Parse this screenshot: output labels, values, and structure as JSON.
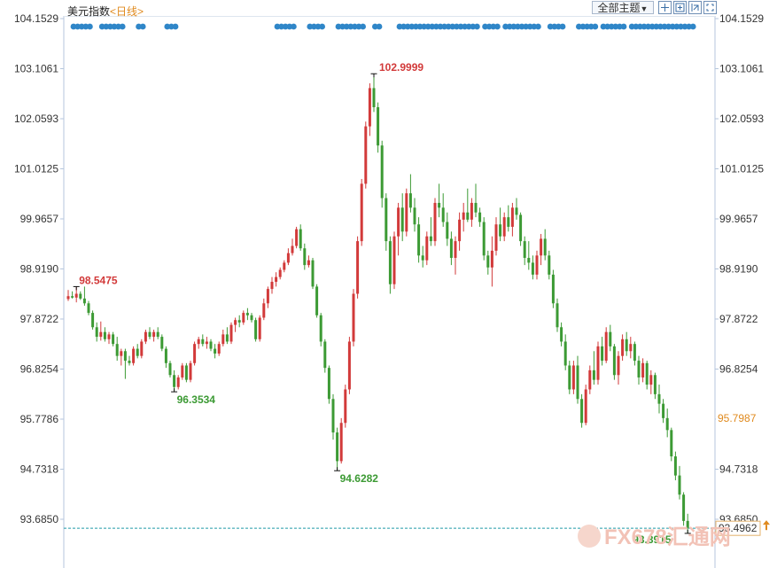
{
  "header": {
    "title": "美元指数",
    "period": "<日线>",
    "theme_button": "全部主题"
  },
  "watermark": "FX678汇通网",
  "colors": {
    "up": "#d23a3a",
    "down": "#3c9a34",
    "dot": "#2f86c8",
    "price_tag": "#e08a1e",
    "current_line": "#1e9aa7"
  },
  "chart_data": {
    "type": "candlestick",
    "title": "美元指数",
    "ylim": [
      93.3915,
      104.1529
    ],
    "y_ticks": [
      "104.1529",
      "103.1061",
      "102.0593",
      "101.0125",
      "99.9657",
      "98.9190",
      "97.8722",
      "96.8254",
      "95.7786",
      "94.7318",
      "93.6850"
    ],
    "annotations": {
      "high": "102.9999",
      "early_high": "98.5475",
      "low1": "96.3534",
      "low2": "94.6282",
      "last_low": "93.3915"
    },
    "price_tags": {
      "marker": "95.7987",
      "current": "93.4962"
    },
    "candles": [
      {
        "o": 98.29,
        "h": 98.48,
        "l": 98.25,
        "c": 98.35
      },
      {
        "o": 98.35,
        "h": 98.45,
        "l": 98.3,
        "c": 98.32
      },
      {
        "o": 98.32,
        "h": 98.55,
        "l": 98.22,
        "c": 98.4
      },
      {
        "o": 98.4,
        "h": 98.45,
        "l": 98.27,
        "c": 98.3
      },
      {
        "o": 98.3,
        "h": 98.55,
        "l": 98.15,
        "c": 98.2
      },
      {
        "o": 98.2,
        "h": 98.25,
        "l": 97.95,
        "c": 98.0
      },
      {
        "o": 98.0,
        "h": 98.05,
        "l": 97.65,
        "c": 97.7
      },
      {
        "o": 97.7,
        "h": 97.8,
        "l": 97.4,
        "c": 97.5
      },
      {
        "o": 97.5,
        "h": 97.82,
        "l": 97.42,
        "c": 97.6
      },
      {
        "o": 97.6,
        "h": 97.7,
        "l": 97.4,
        "c": 97.45
      },
      {
        "o": 97.45,
        "h": 97.6,
        "l": 97.35,
        "c": 97.55
      },
      {
        "o": 97.55,
        "h": 97.6,
        "l": 97.3,
        "c": 97.35
      },
      {
        "o": 97.35,
        "h": 97.5,
        "l": 97.0,
        "c": 97.1
      },
      {
        "o": 97.1,
        "h": 97.25,
        "l": 96.9,
        "c": 97.2
      },
      {
        "o": 97.2,
        "h": 97.25,
        "l": 96.62,
        "c": 97.0
      },
      {
        "o": 97.0,
        "h": 97.1,
        "l": 96.9,
        "c": 96.95
      },
      {
        "o": 96.95,
        "h": 97.3,
        "l": 96.9,
        "c": 97.25
      },
      {
        "o": 97.25,
        "h": 97.35,
        "l": 97.05,
        "c": 97.1
      },
      {
        "o": 97.1,
        "h": 97.45,
        "l": 97.05,
        "c": 97.4
      },
      {
        "o": 97.4,
        "h": 97.65,
        "l": 97.35,
        "c": 97.6
      },
      {
        "o": 97.6,
        "h": 97.7,
        "l": 97.45,
        "c": 97.5
      },
      {
        "o": 97.5,
        "h": 97.65,
        "l": 97.4,
        "c": 97.6
      },
      {
        "o": 97.6,
        "h": 97.7,
        "l": 97.45,
        "c": 97.5
      },
      {
        "o": 97.5,
        "h": 97.55,
        "l": 97.2,
        "c": 97.25
      },
      {
        "o": 97.25,
        "h": 97.3,
        "l": 96.85,
        "c": 96.95
      },
      {
        "o": 96.95,
        "h": 97.0,
        "l": 96.65,
        "c": 96.7
      },
      {
        "o": 96.7,
        "h": 96.8,
        "l": 96.35,
        "c": 96.45
      },
      {
        "o": 96.45,
        "h": 96.7,
        "l": 96.4,
        "c": 96.65
      },
      {
        "o": 96.65,
        "h": 96.95,
        "l": 96.6,
        "c": 96.9
      },
      {
        "o": 96.9,
        "h": 96.95,
        "l": 96.55,
        "c": 96.6
      },
      {
        "o": 96.6,
        "h": 97.0,
        "l": 96.55,
        "c": 96.95
      },
      {
        "o": 96.95,
        "h": 97.4,
        "l": 96.9,
        "c": 97.35
      },
      {
        "o": 97.35,
        "h": 97.5,
        "l": 97.25,
        "c": 97.45
      },
      {
        "o": 97.45,
        "h": 97.55,
        "l": 97.3,
        "c": 97.35
      },
      {
        "o": 97.35,
        "h": 97.5,
        "l": 97.25,
        "c": 97.4
      },
      {
        "o": 97.4,
        "h": 97.45,
        "l": 97.2,
        "c": 97.25
      },
      {
        "o": 97.25,
        "h": 97.35,
        "l": 97.05,
        "c": 97.15
      },
      {
        "o": 97.15,
        "h": 97.4,
        "l": 97.1,
        "c": 97.35
      },
      {
        "o": 97.35,
        "h": 97.65,
        "l": 97.3,
        "c": 97.55
      },
      {
        "o": 97.55,
        "h": 97.7,
        "l": 97.35,
        "c": 97.4
      },
      {
        "o": 97.4,
        "h": 97.8,
        "l": 97.35,
        "c": 97.75
      },
      {
        "o": 97.75,
        "h": 97.9,
        "l": 97.6,
        "c": 97.85
      },
      {
        "o": 97.85,
        "h": 97.95,
        "l": 97.7,
        "c": 97.8
      },
      {
        "o": 97.8,
        "h": 98.05,
        "l": 97.75,
        "c": 98.0
      },
      {
        "o": 98.0,
        "h": 98.1,
        "l": 97.85,
        "c": 97.95
      },
      {
        "o": 97.95,
        "h": 98.0,
        "l": 97.8,
        "c": 97.85
      },
      {
        "o": 97.85,
        "h": 97.9,
        "l": 97.4,
        "c": 97.45
      },
      {
        "o": 97.45,
        "h": 97.95,
        "l": 97.4,
        "c": 97.9
      },
      {
        "o": 97.9,
        "h": 98.3,
        "l": 97.85,
        "c": 98.2
      },
      {
        "o": 98.2,
        "h": 98.55,
        "l": 98.1,
        "c": 98.5
      },
      {
        "o": 98.5,
        "h": 98.75,
        "l": 98.4,
        "c": 98.65
      },
      {
        "o": 98.65,
        "h": 98.85,
        "l": 98.55,
        "c": 98.75
      },
      {
        "o": 98.75,
        "h": 98.95,
        "l": 98.7,
        "c": 98.9
      },
      {
        "o": 98.9,
        "h": 99.1,
        "l": 98.85,
        "c": 99.05
      },
      {
        "o": 99.05,
        "h": 99.35,
        "l": 99.0,
        "c": 99.25
      },
      {
        "o": 99.25,
        "h": 99.55,
        "l": 99.2,
        "c": 99.4
      },
      {
        "o": 99.4,
        "h": 99.8,
        "l": 99.35,
        "c": 99.75
      },
      {
        "o": 99.75,
        "h": 99.85,
        "l": 99.3,
        "c": 99.35
      },
      {
        "o": 99.35,
        "h": 99.45,
        "l": 98.9,
        "c": 99.0
      },
      {
        "o": 99.0,
        "h": 99.2,
        "l": 98.95,
        "c": 99.1
      },
      {
        "o": 99.1,
        "h": 99.15,
        "l": 98.5,
        "c": 98.55
      },
      {
        "o": 98.55,
        "h": 98.6,
        "l": 97.9,
        "c": 97.95
      },
      {
        "o": 97.95,
        "h": 98.0,
        "l": 97.3,
        "c": 97.4
      },
      {
        "o": 97.4,
        "h": 97.45,
        "l": 96.75,
        "c": 96.85
      },
      {
        "o": 96.85,
        "h": 96.9,
        "l": 96.1,
        "c": 96.2
      },
      {
        "o": 96.2,
        "h": 96.3,
        "l": 95.35,
        "c": 95.5
      },
      {
        "o": 95.5,
        "h": 95.6,
        "l": 94.7,
        "c": 94.9
      },
      {
        "o": 94.9,
        "h": 95.8,
        "l": 94.85,
        "c": 95.7
      },
      {
        "o": 95.7,
        "h": 96.5,
        "l": 95.6,
        "c": 96.4
      },
      {
        "o": 96.4,
        "h": 97.5,
        "l": 96.3,
        "c": 97.4
      },
      {
        "o": 97.4,
        "h": 98.5,
        "l": 97.3,
        "c": 98.4
      },
      {
        "o": 98.4,
        "h": 99.6,
        "l": 98.3,
        "c": 99.5
      },
      {
        "o": 99.5,
        "h": 100.8,
        "l": 99.4,
        "c": 100.7
      },
      {
        "o": 100.7,
        "h": 102.0,
        "l": 100.6,
        "c": 101.9
      },
      {
        "o": 101.9,
        "h": 102.8,
        "l": 101.7,
        "c": 102.7
      },
      {
        "o": 102.7,
        "h": 103.0,
        "l": 102.2,
        "c": 102.3
      },
      {
        "o": 102.3,
        "h": 102.4,
        "l": 101.35,
        "c": 101.5
      },
      {
        "o": 101.5,
        "h": 101.6,
        "l": 100.2,
        "c": 100.4
      },
      {
        "o": 100.4,
        "h": 100.5,
        "l": 99.3,
        "c": 99.5
      },
      {
        "o": 99.5,
        "h": 99.6,
        "l": 98.4,
        "c": 98.6
      },
      {
        "o": 98.6,
        "h": 99.7,
        "l": 98.5,
        "c": 99.6
      },
      {
        "o": 99.6,
        "h": 100.3,
        "l": 99.2,
        "c": 100.2
      },
      {
        "o": 100.2,
        "h": 100.5,
        "l": 99.5,
        "c": 99.7
      },
      {
        "o": 99.7,
        "h": 100.6,
        "l": 99.6,
        "c": 100.5
      },
      {
        "o": 100.5,
        "h": 100.9,
        "l": 100.1,
        "c": 100.2
      },
      {
        "o": 100.2,
        "h": 100.4,
        "l": 99.7,
        "c": 99.85
      },
      {
        "o": 99.85,
        "h": 100.0,
        "l": 99.05,
        "c": 99.2
      },
      {
        "o": 99.2,
        "h": 99.4,
        "l": 98.95,
        "c": 99.1
      },
      {
        "o": 99.1,
        "h": 99.7,
        "l": 99.0,
        "c": 99.6
      },
      {
        "o": 99.6,
        "h": 100.0,
        "l": 99.4,
        "c": 99.5
      },
      {
        "o": 99.5,
        "h": 100.4,
        "l": 99.4,
        "c": 100.3
      },
      {
        "o": 100.3,
        "h": 100.7,
        "l": 100.0,
        "c": 100.2
      },
      {
        "o": 100.2,
        "h": 100.5,
        "l": 99.8,
        "c": 99.9
      },
      {
        "o": 99.9,
        "h": 100.1,
        "l": 99.4,
        "c": 99.55
      },
      {
        "o": 99.55,
        "h": 99.7,
        "l": 99.0,
        "c": 99.15
      },
      {
        "o": 99.15,
        "h": 99.6,
        "l": 98.8,
        "c": 99.5
      },
      {
        "o": 99.5,
        "h": 100.1,
        "l": 99.3,
        "c": 99.95
      },
      {
        "o": 99.95,
        "h": 100.3,
        "l": 99.7,
        "c": 100.1
      },
      {
        "o": 100.1,
        "h": 100.6,
        "l": 99.9,
        "c": 99.95
      },
      {
        "o": 99.95,
        "h": 100.4,
        "l": 99.8,
        "c": 100.3
      },
      {
        "o": 100.3,
        "h": 100.7,
        "l": 100.0,
        "c": 100.1
      },
      {
        "o": 100.1,
        "h": 100.2,
        "l": 99.8,
        "c": 99.9
      },
      {
        "o": 99.9,
        "h": 100.0,
        "l": 99.1,
        "c": 99.2
      },
      {
        "o": 99.2,
        "h": 99.3,
        "l": 98.8,
        "c": 98.95
      },
      {
        "o": 98.95,
        "h": 99.6,
        "l": 98.55,
        "c": 99.3
      },
      {
        "o": 99.3,
        "h": 100.0,
        "l": 99.2,
        "c": 99.85
      },
      {
        "o": 99.85,
        "h": 100.2,
        "l": 99.5,
        "c": 99.6
      },
      {
        "o": 99.6,
        "h": 100.1,
        "l": 99.5,
        "c": 100.0
      },
      {
        "o": 100.0,
        "h": 100.25,
        "l": 99.7,
        "c": 99.8
      },
      {
        "o": 99.8,
        "h": 100.3,
        "l": 99.6,
        "c": 100.2
      },
      {
        "o": 100.2,
        "h": 100.4,
        "l": 99.95,
        "c": 100.05
      },
      {
        "o": 100.05,
        "h": 100.1,
        "l": 99.4,
        "c": 99.5
      },
      {
        "o": 99.5,
        "h": 99.6,
        "l": 99.0,
        "c": 99.15
      },
      {
        "o": 99.15,
        "h": 99.5,
        "l": 98.9,
        "c": 99.05
      },
      {
        "o": 99.05,
        "h": 99.2,
        "l": 98.7,
        "c": 98.8
      },
      {
        "o": 98.8,
        "h": 99.3,
        "l": 98.7,
        "c": 99.2
      },
      {
        "o": 99.2,
        "h": 99.65,
        "l": 99.0,
        "c": 99.55
      },
      {
        "o": 99.55,
        "h": 99.75,
        "l": 99.1,
        "c": 99.2
      },
      {
        "o": 99.2,
        "h": 99.3,
        "l": 98.7,
        "c": 98.8
      },
      {
        "o": 98.8,
        "h": 98.9,
        "l": 98.1,
        "c": 98.2
      },
      {
        "o": 98.2,
        "h": 98.3,
        "l": 97.6,
        "c": 97.7
      },
      {
        "o": 97.7,
        "h": 97.8,
        "l": 97.3,
        "c": 97.4
      },
      {
        "o": 97.4,
        "h": 97.55,
        "l": 96.8,
        "c": 96.9
      },
      {
        "o": 96.9,
        "h": 97.0,
        "l": 96.3,
        "c": 96.4
      },
      {
        "o": 96.4,
        "h": 97.0,
        "l": 96.3,
        "c": 96.9
      },
      {
        "o": 96.9,
        "h": 97.1,
        "l": 96.1,
        "c": 96.2
      },
      {
        "o": 96.2,
        "h": 96.3,
        "l": 95.6,
        "c": 95.7
      },
      {
        "o": 95.7,
        "h": 96.5,
        "l": 95.65,
        "c": 96.4
      },
      {
        "o": 96.4,
        "h": 96.9,
        "l": 96.3,
        "c": 96.8
      },
      {
        "o": 96.8,
        "h": 97.2,
        "l": 96.5,
        "c": 96.6
      },
      {
        "o": 96.6,
        "h": 97.4,
        "l": 96.5,
        "c": 97.3
      },
      {
        "o": 97.3,
        "h": 97.5,
        "l": 96.9,
        "c": 97.0
      },
      {
        "o": 97.0,
        "h": 97.7,
        "l": 96.95,
        "c": 97.6
      },
      {
        "o": 97.6,
        "h": 97.75,
        "l": 97.2,
        "c": 97.3
      },
      {
        "o": 97.3,
        "h": 97.35,
        "l": 96.6,
        "c": 96.7
      },
      {
        "o": 96.7,
        "h": 97.2,
        "l": 96.5,
        "c": 97.1
      },
      {
        "o": 97.1,
        "h": 97.55,
        "l": 97.0,
        "c": 97.45
      },
      {
        "o": 97.45,
        "h": 97.6,
        "l": 97.1,
        "c": 97.2
      },
      {
        "o": 97.2,
        "h": 97.5,
        "l": 97.05,
        "c": 97.35
      },
      {
        "o": 97.35,
        "h": 97.4,
        "l": 96.9,
        "c": 97.0
      },
      {
        "o": 97.0,
        "h": 97.1,
        "l": 96.5,
        "c": 96.65
      },
      {
        "o": 96.65,
        "h": 97.05,
        "l": 96.55,
        "c": 96.95
      },
      {
        "o": 96.95,
        "h": 97.0,
        "l": 96.4,
        "c": 96.5
      },
      {
        "o": 96.5,
        "h": 96.8,
        "l": 96.3,
        "c": 96.7
      },
      {
        "o": 96.7,
        "h": 96.75,
        "l": 96.2,
        "c": 96.3
      },
      {
        "o": 96.3,
        "h": 96.5,
        "l": 95.9,
        "c": 96.1
      },
      {
        "o": 96.1,
        "h": 96.2,
        "l": 95.7,
        "c": 95.8
      },
      {
        "o": 95.8,
        "h": 96.0,
        "l": 95.4,
        "c": 95.55
      },
      {
        "o": 95.55,
        "h": 95.6,
        "l": 94.9,
        "c": 95.0
      },
      {
        "o": 95.0,
        "h": 95.1,
        "l": 94.5,
        "c": 94.6
      },
      {
        "o": 94.6,
        "h": 94.8,
        "l": 94.1,
        "c": 94.2
      },
      {
        "o": 94.2,
        "h": 94.25,
        "l": 93.55,
        "c": 93.65
      },
      {
        "o": 93.65,
        "h": 93.8,
        "l": 93.39,
        "c": 93.5
      }
    ],
    "event_dots": [
      [
        0,
        4
      ],
      [
        7,
        12
      ],
      [
        16,
        17
      ],
      [
        23,
        25
      ],
      [
        50,
        54
      ],
      [
        58,
        61
      ],
      [
        65,
        71
      ],
      [
        74,
        75
      ],
      [
        80,
        99
      ],
      [
        101,
        104
      ],
      [
        106,
        109
      ],
      [
        110,
        114
      ],
      [
        117,
        120
      ],
      [
        124,
        128
      ],
      [
        130,
        135
      ],
      [
        137,
        152
      ]
    ]
  }
}
